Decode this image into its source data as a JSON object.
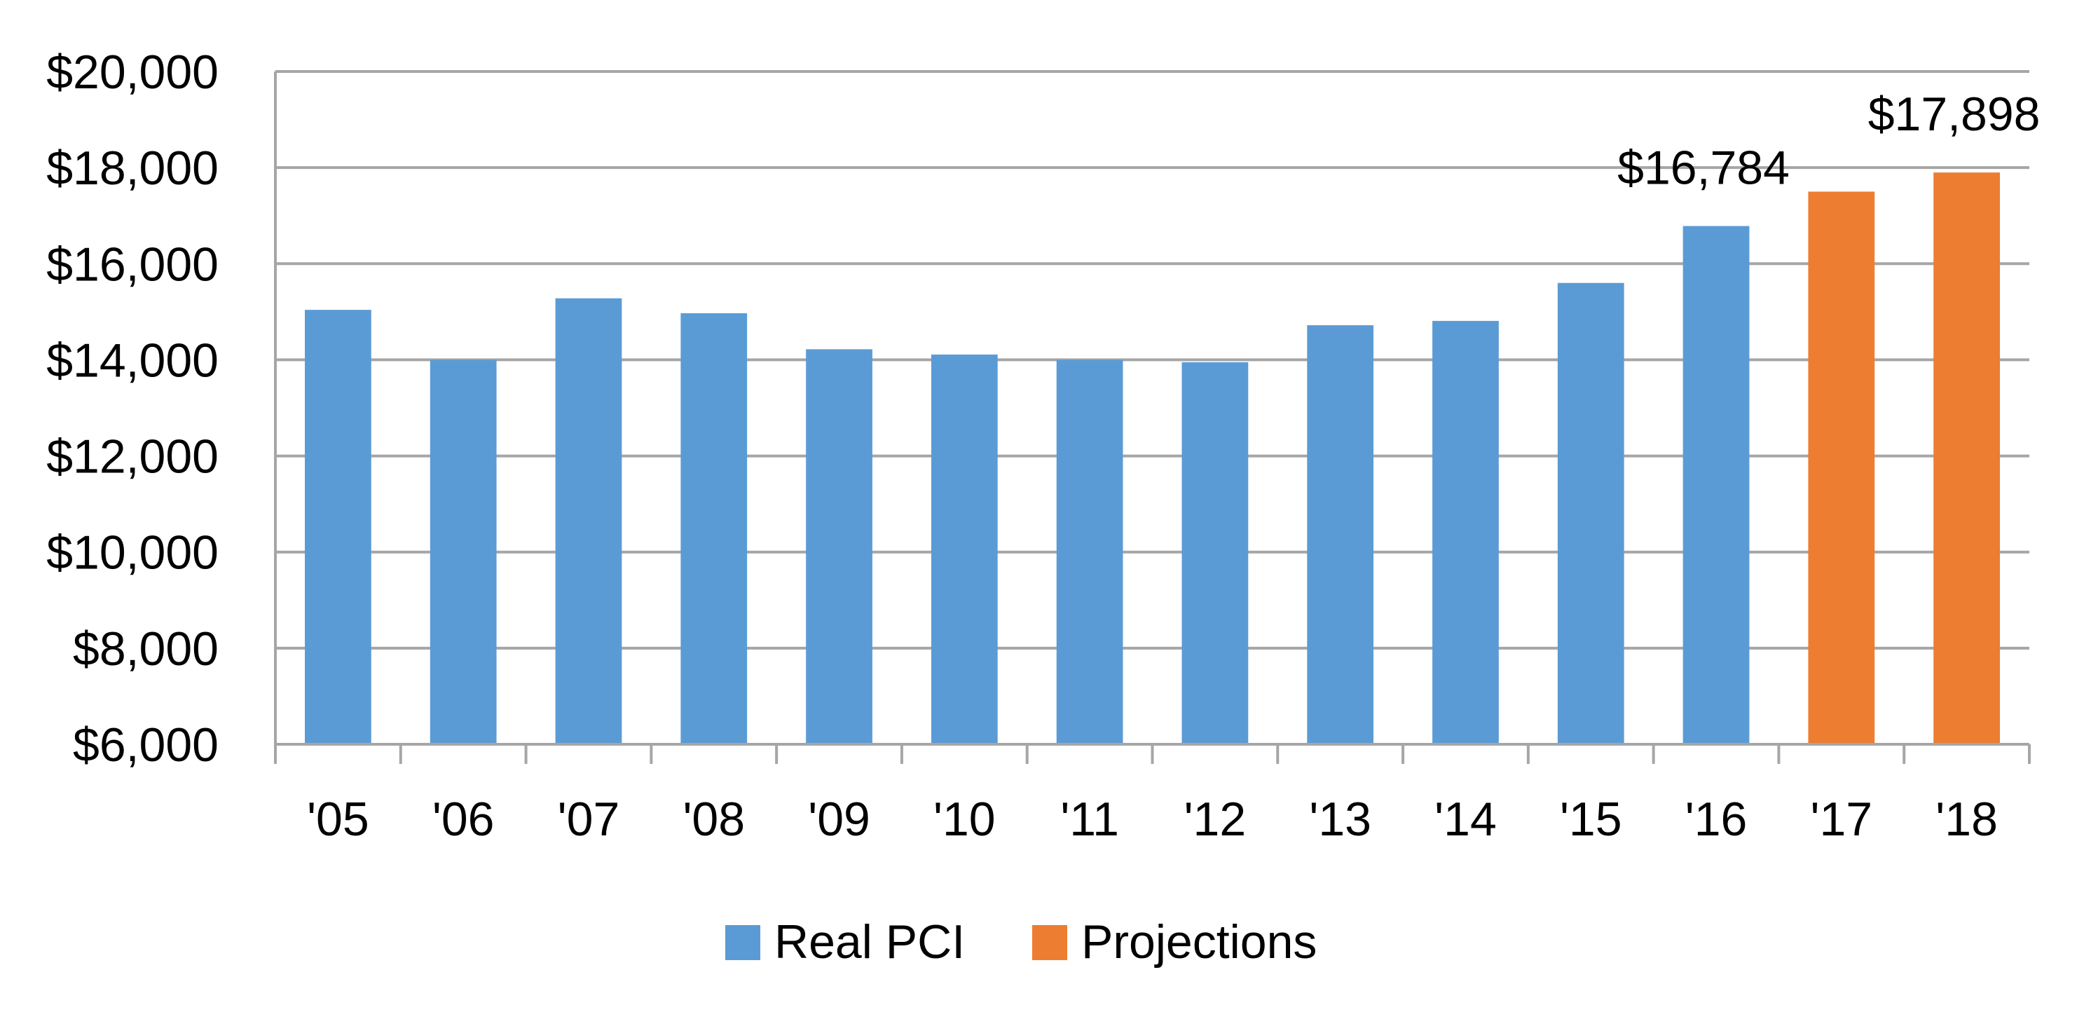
{
  "chart_data": {
    "type": "bar",
    "categories": [
      "'05",
      "'06",
      "'07",
      "'08",
      "'09",
      "'10",
      "'11",
      "'12",
      "'13",
      "'14",
      "'15",
      "'16",
      "'17",
      "'18"
    ],
    "series": [
      {
        "name": "Real PCI",
        "color": "#5b9bd5",
        "values": [
          15040,
          14000,
          15280,
          14970,
          14220,
          14110,
          14000,
          13950,
          14720,
          14810,
          15600,
          16784,
          null,
          null
        ]
      },
      {
        "name": "Projections",
        "color": "#ed7d31",
        "values": [
          null,
          null,
          null,
          null,
          null,
          null,
          null,
          null,
          null,
          null,
          null,
          null,
          17500,
          17898
        ]
      }
    ],
    "data_labels": [
      {
        "category": "'16",
        "text": "$16,784"
      },
      {
        "category": "'18",
        "text": "$17,898"
      }
    ],
    "y_ticks": [
      "$6,000",
      "$8,000",
      "$10,000",
      "$12,000",
      "$14,000",
      "$16,000",
      "$18,000",
      "$20,000"
    ],
    "ylim": [
      6000,
      20000
    ],
    "y_tick_step": 2000,
    "grid": true,
    "grid_color": "#a6a6a6",
    "legend_position": "bottom",
    "title": "",
    "xlabel": "",
    "ylabel": ""
  }
}
